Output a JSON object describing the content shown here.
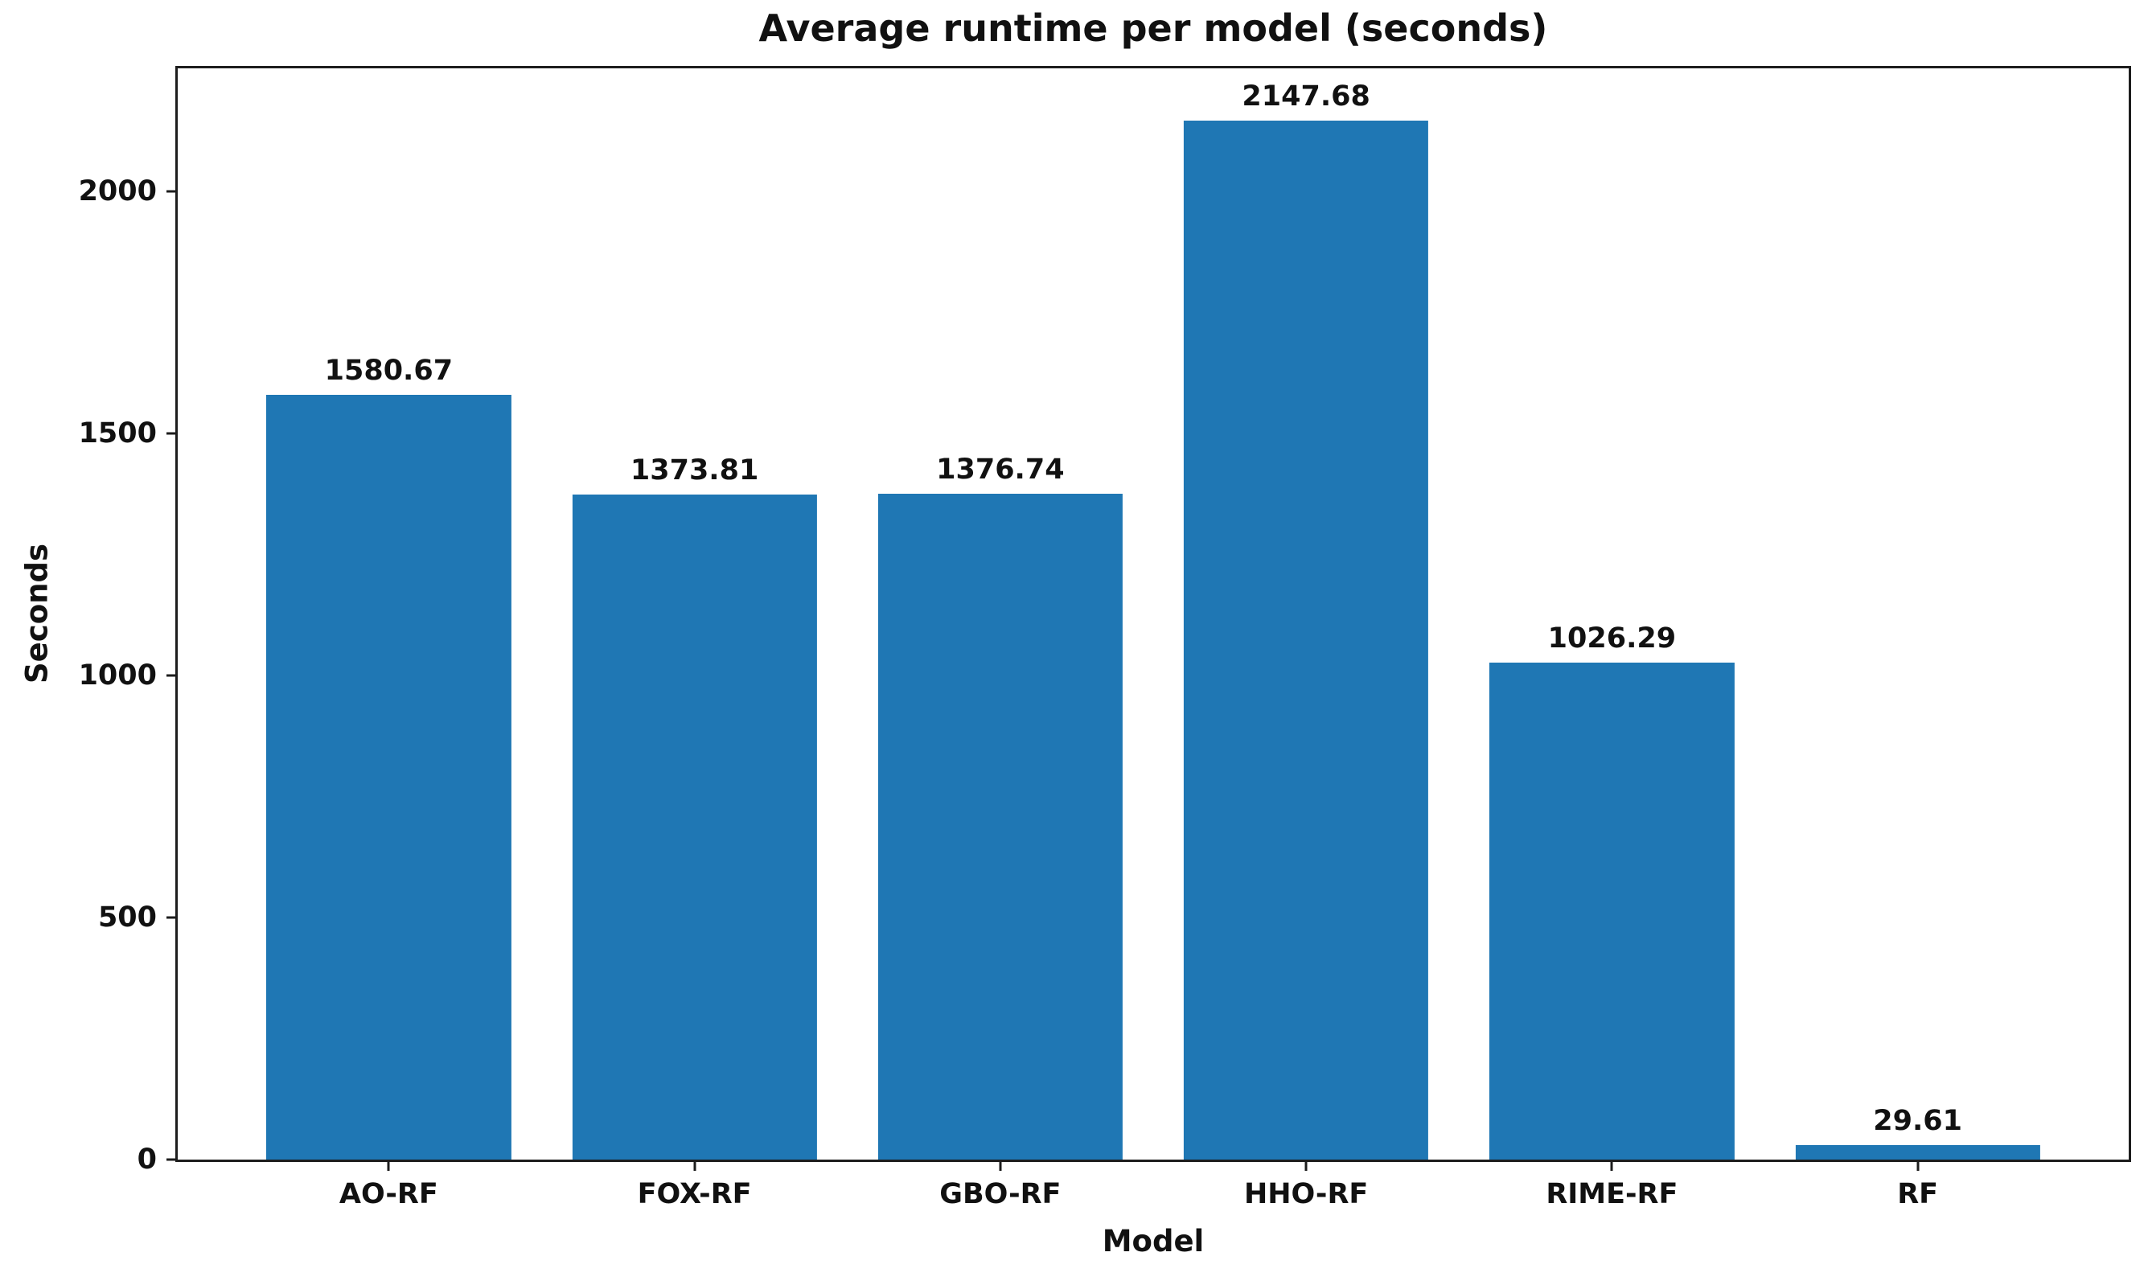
{
  "chart_data": {
    "type": "bar",
    "title": "Average runtime per model (seconds)",
    "xlabel": "Model",
    "ylabel": "Seconds",
    "categories": [
      "AO-RF",
      "FOX-RF",
      "GBO-RF",
      "HHO-RF",
      "RIME-RF",
      "RF"
    ],
    "values": [
      1580.67,
      1373.81,
      1376.74,
      2147.68,
      1026.29,
      29.61
    ],
    "value_labels": [
      "1580.67",
      "1373.81",
      "1376.74",
      "2147.68",
      "1026.29",
      "29.61"
    ],
    "yticks": [
      0,
      500,
      1000,
      1500,
      2000
    ],
    "ylim": [
      0,
      2255
    ],
    "xlim": [
      -0.69,
      5.69
    ],
    "bar_width_units": 0.8,
    "grid": false,
    "legend_position": "none",
    "bar_color": "#1f77b4",
    "text_color": "#111111",
    "spine_color": "#1d1d1d",
    "background_color": "#ffffff"
  }
}
